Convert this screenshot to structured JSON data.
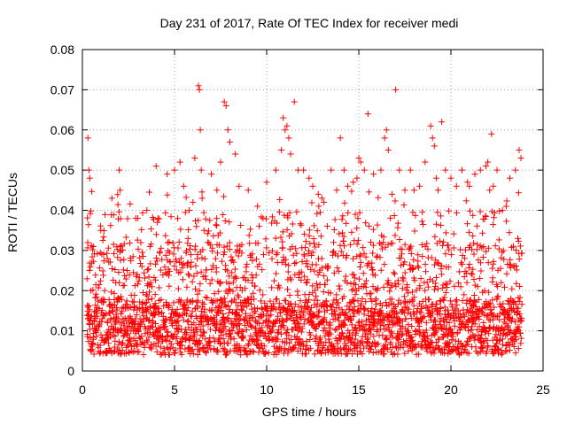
{
  "chart_data": {
    "type": "scatter",
    "title": "Day 231 of 2017, Rate Of TEC Index for receiver medi",
    "xlabel": "GPS time / hours",
    "ylabel": "ROTI / TECUs",
    "xlim": [
      0,
      25
    ],
    "ylim": [
      0,
      0.08
    ],
    "xticks": [
      "0",
      "5",
      "10",
      "15",
      "20",
      "25"
    ],
    "yticks": [
      "0",
      "0.01",
      "0.02",
      "0.03",
      "0.04",
      "0.05",
      "0.06",
      "0.07",
      "0.08"
    ],
    "grid": true,
    "marker": "+",
    "color": "#ff0000",
    "series": [
      {
        "x": [
          0.3,
          0.35,
          0.4,
          0.45,
          1.0,
          1.6,
          2.0,
          2.05,
          2.1,
          3.0,
          3.5,
          4.0,
          4.1,
          4.6,
          5.0,
          5.3,
          5.5,
          5.8,
          6.0,
          6.1,
          6.3,
          6.35,
          6.4,
          6.45,
          6.5,
          6.6,
          7.0,
          7.3,
          7.5,
          7.7,
          7.8,
          7.9,
          8.0,
          8.3,
          8.5,
          9.0,
          9.5,
          9.8,
          10.0,
          10.5,
          10.8,
          10.9,
          11.0,
          11.1,
          11.2,
          11.3,
          11.5,
          11.7,
          12.0,
          12.3,
          12.5,
          12.8,
          13.0,
          13.5,
          13.8,
          14.0,
          14.2,
          14.4,
          14.7,
          14.9,
          15.0,
          15.1,
          15.3,
          15.5,
          15.8,
          16.2,
          16.4,
          16.5,
          16.6,
          16.8,
          17.0,
          17.2,
          17.5,
          17.8,
          18.0,
          18.3,
          18.6,
          18.9,
          19.0,
          19.1,
          19.2,
          19.3,
          19.5,
          19.7,
          20.0,
          20.3,
          20.6,
          20.9,
          21.0,
          21.3,
          21.6,
          21.9,
          22.0,
          22.1,
          22.2,
          22.3,
          22.5,
          22.8,
          23.0,
          23.2,
          23.5,
          23.7,
          23.8
        ],
        "y": [
          0.058,
          0.05,
          0.048,
          0.02,
          0.035,
          0.043,
          0.05,
          0.045,
          0.03,
          0.038,
          0.04,
          0.051,
          0.038,
          0.049,
          0.05,
          0.052,
          0.046,
          0.04,
          0.042,
          0.053,
          0.071,
          0.07,
          0.06,
          0.05,
          0.043,
          0.035,
          0.049,
          0.045,
          0.052,
          0.067,
          0.066,
          0.06,
          0.057,
          0.054,
          0.046,
          0.045,
          0.041,
          0.038,
          0.047,
          0.05,
          0.055,
          0.063,
          0.06,
          0.061,
          0.058,
          0.054,
          0.067,
          0.05,
          0.05,
          0.048,
          0.046,
          0.044,
          0.043,
          0.05,
          0.045,
          0.058,
          0.05,
          0.046,
          0.047,
          0.048,
          0.053,
          0.052,
          0.05,
          0.064,
          0.049,
          0.05,
          0.058,
          0.06,
          0.055,
          0.044,
          0.07,
          0.05,
          0.045,
          0.05,
          0.045,
          0.046,
          0.052,
          0.061,
          0.058,
          0.056,
          0.048,
          0.045,
          0.062,
          0.05,
          0.048,
          0.046,
          0.05,
          0.047,
          0.046,
          0.049,
          0.05,
          0.051,
          0.052,
          0.045,
          0.059,
          0.046,
          0.05,
          0.04,
          0.041,
          0.048,
          0.05,
          0.055,
          0.053
        ]
      }
    ],
    "density": {
      "description_free": true,
      "hour_start": 0.25,
      "hour_end": 23.85,
      "step": 0.02,
      "base_min": 0.004,
      "base_max": 0.018
    }
  }
}
